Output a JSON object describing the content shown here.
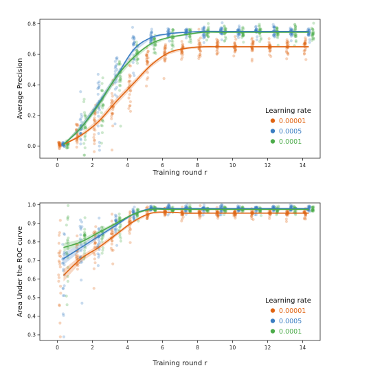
{
  "chart_data": [
    {
      "type": "scatter",
      "title": "",
      "xlabel": "Training round r",
      "ylabel": "Average Precision",
      "xlim": [
        -1,
        15
      ],
      "ylim": [
        -0.08,
        0.83
      ],
      "x_ticks": [
        0,
        2,
        4,
        6,
        8,
        10,
        12,
        14
      ],
      "y_ticks": [
        0.0,
        0.2,
        0.4,
        0.6,
        0.8
      ],
      "grid": false,
      "legend": {
        "title": "Learning rate",
        "position": "right"
      },
      "series": [
        {
          "name": "0.00001",
          "color": "#e06412",
          "x": [
            0,
            1,
            2,
            3,
            4,
            5,
            6,
            7,
            8,
            9,
            10,
            11,
            12,
            13,
            14
          ],
          "mean": [
            0.01,
            0.07,
            0.16,
            0.29,
            0.41,
            0.53,
            0.61,
            0.64,
            0.65,
            0.65,
            0.65,
            0.65,
            0.65,
            0.65,
            0.65
          ],
          "spread": [
            0.02,
            0.08,
            0.12,
            0.15,
            0.13,
            0.1,
            0.07,
            0.05,
            0.05,
            0.04,
            0.04,
            0.04,
            0.04,
            0.04,
            0.04
          ]
        },
        {
          "name": "0.0005",
          "color": "#3a7dc2",
          "x": [
            0,
            1,
            2,
            3,
            4,
            5,
            6,
            7,
            8,
            9,
            10,
            11,
            12,
            13,
            14
          ],
          "mean": [
            0.01,
            0.12,
            0.28,
            0.45,
            0.63,
            0.71,
            0.735,
            0.745,
            0.75,
            0.75,
            0.75,
            0.75,
            0.75,
            0.75,
            0.75
          ],
          "spread": [
            0.02,
            0.12,
            0.15,
            0.14,
            0.1,
            0.05,
            0.03,
            0.03,
            0.03,
            0.03,
            0.03,
            0.03,
            0.03,
            0.03,
            0.03
          ]
        },
        {
          "name": "0.0001",
          "color": "#4cab4a",
          "x": [
            0,
            1,
            2,
            3,
            4,
            5,
            6,
            7,
            8,
            9,
            10,
            11,
            12,
            13,
            14
          ],
          "mean": [
            0.01,
            0.12,
            0.27,
            0.45,
            0.58,
            0.67,
            0.71,
            0.73,
            0.745,
            0.745,
            0.745,
            0.745,
            0.745,
            0.745,
            0.745
          ],
          "spread": [
            0.02,
            0.13,
            0.16,
            0.14,
            0.11,
            0.07,
            0.05,
            0.04,
            0.04,
            0.04,
            0.04,
            0.04,
            0.04,
            0.04,
            0.04
          ]
        }
      ]
    },
    {
      "type": "scatter",
      "title": "",
      "xlabel": "Training round r",
      "ylabel": "Area Under the ROC curve",
      "xlim": [
        -1,
        15
      ],
      "ylim": [
        0.27,
        1.01
      ],
      "x_ticks": [
        0,
        2,
        4,
        6,
        8,
        10,
        12,
        14
      ],
      "y_ticks": [
        0.3,
        0.4,
        0.5,
        0.6,
        0.7,
        0.8,
        0.9,
        1.0
      ],
      "grid": false,
      "legend": {
        "title": "Learning rate",
        "position": "lower right"
      },
      "series": [
        {
          "name": "0.00001",
          "color": "#e06412",
          "x": [
            0,
            1,
            2,
            3,
            4,
            5,
            6,
            7,
            8,
            9,
            10,
            11,
            12,
            13,
            14
          ],
          "mean": [
            0.62,
            0.71,
            0.77,
            0.84,
            0.91,
            0.955,
            0.96,
            0.955,
            0.955,
            0.955,
            0.955,
            0.955,
            0.955,
            0.955,
            0.955
          ],
          "spread": [
            0.22,
            0.12,
            0.09,
            0.07,
            0.05,
            0.03,
            0.02,
            0.02,
            0.02,
            0.02,
            0.02,
            0.02,
            0.02,
            0.02,
            0.02
          ]
        },
        {
          "name": "0.0005",
          "color": "#3a7dc2",
          "x": [
            0,
            1,
            2,
            3,
            4,
            5,
            6,
            7,
            8,
            9,
            10,
            11,
            12,
            13,
            14
          ],
          "mean": [
            0.71,
            0.77,
            0.83,
            0.89,
            0.95,
            0.98,
            0.98,
            0.98,
            0.98,
            0.98,
            0.98,
            0.98,
            0.98,
            0.98,
            0.98
          ],
          "spread": [
            0.22,
            0.12,
            0.08,
            0.05,
            0.03,
            0.015,
            0.015,
            0.015,
            0.015,
            0.015,
            0.015,
            0.015,
            0.015,
            0.015,
            0.015
          ]
        },
        {
          "name": "0.0001",
          "color": "#4cab4a",
          "x": [
            0,
            1,
            2,
            3,
            4,
            5,
            6,
            7,
            8,
            9,
            10,
            11,
            12,
            13,
            14
          ],
          "mean": [
            0.77,
            0.8,
            0.85,
            0.9,
            0.95,
            0.975,
            0.975,
            0.975,
            0.975,
            0.975,
            0.975,
            0.975,
            0.975,
            0.975,
            0.975
          ],
          "spread": [
            0.15,
            0.1,
            0.07,
            0.05,
            0.03,
            0.015,
            0.015,
            0.015,
            0.015,
            0.015,
            0.015,
            0.015,
            0.015,
            0.015,
            0.015
          ]
        }
      ]
    }
  ]
}
